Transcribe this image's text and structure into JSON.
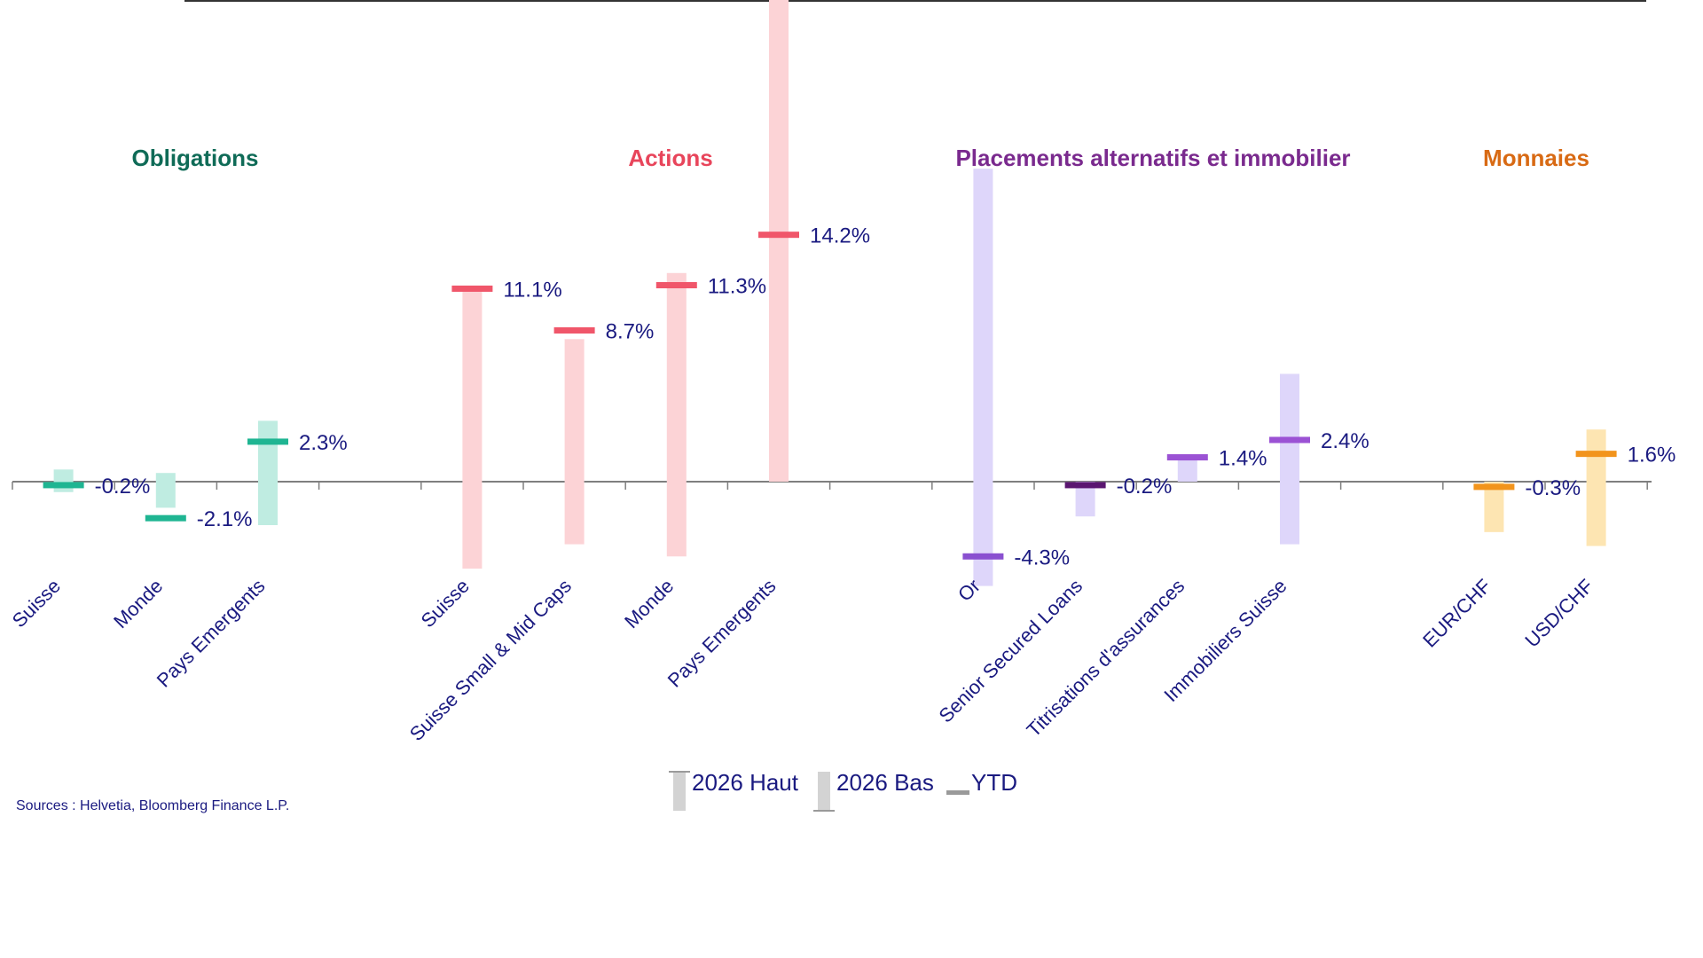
{
  "chart_data": {
    "type": "range",
    "ylim": [
      -8,
      30
    ],
    "groups": [
      {
        "title": "Obligations",
        "color": "#0f6b57",
        "line_color": "#1fb592",
        "range_color": "#bfece1",
        "items": [
          {
            "category": "Suisse",
            "low": -0.6,
            "high": 0.7,
            "ytd": -0.2,
            "label": "-0.2%"
          },
          {
            "category": "Monde",
            "low": -1.5,
            "high": 0.5,
            "ytd": -2.1,
            "label": "-2.1%"
          },
          {
            "category": "Pays Emergents",
            "low": -2.5,
            "high": 3.5,
            "ytd": 2.3,
            "label": "2.3%"
          }
        ]
      },
      {
        "title": "Actions",
        "color": "#e8455b",
        "line_color": "#f0566a",
        "range_color": "#fcd3d6",
        "items": [
          {
            "category": "Suisse",
            "low": -5.0,
            "high": 11.0,
            "ytd": 11.1,
            "label": "11.1%"
          },
          {
            "category": "Suisse Small & Mid Caps",
            "low": -3.6,
            "high": 8.2,
            "ytd": 8.7,
            "label": "8.7%"
          },
          {
            "category": "Monde",
            "low": -4.3,
            "high": 12.0,
            "ytd": 11.3,
            "label": "11.3%"
          },
          {
            "category": "Pays Emergents",
            "low": 0.0,
            "high": 29.3,
            "ytd": 14.2,
            "label": "14.2%"
          }
        ]
      },
      {
        "title": "Placements alternatifs et immobilier",
        "color": "#7a2a8e",
        "line_color": "#9b52d4",
        "range_color": "#ded6fa",
        "items": [
          {
            "category": "Or",
            "low": -6.0,
            "high": 18.0,
            "ytd": -4.3,
            "label": "-4.3%",
            "line_color": "#8a50d0"
          },
          {
            "category": "Senior Secured Loans",
            "low": -2.0,
            "high": 0.0,
            "ytd": -0.2,
            "label": "-0.2%",
            "line_color": "#5a1670"
          },
          {
            "category": "Titrisations d'assurances",
            "low": 0.0,
            "high": 1.5,
            "ytd": 1.4,
            "label": "1.4%"
          },
          {
            "category": "Immobiliers Suisse",
            "low": -3.6,
            "high": 6.2,
            "ytd": 2.4,
            "label": "2.4%"
          }
        ]
      },
      {
        "title": "Monnaies",
        "color": "#d86a14",
        "line_color": "#f2941c",
        "range_color": "#fde5b2",
        "items": [
          {
            "category": "EUR/CHF",
            "low": -2.9,
            "high": 0.0,
            "ytd": -0.3,
            "label": "-0.3%"
          },
          {
            "category": "USD/CHF",
            "low": -3.7,
            "high": 3.0,
            "ytd": 1.6,
            "label": "1.6%"
          }
        ]
      }
    ],
    "legend": [
      {
        "label": "2026 Haut",
        "symbol": "bar-top"
      },
      {
        "label": "2026 Bas",
        "symbol": "bar-bottom"
      },
      {
        "label": "YTD",
        "symbol": "dash"
      }
    ],
    "legend_position": "bottom-center"
  },
  "source_note": "Sources : Helvetia, Bloomberg Finance L.P."
}
